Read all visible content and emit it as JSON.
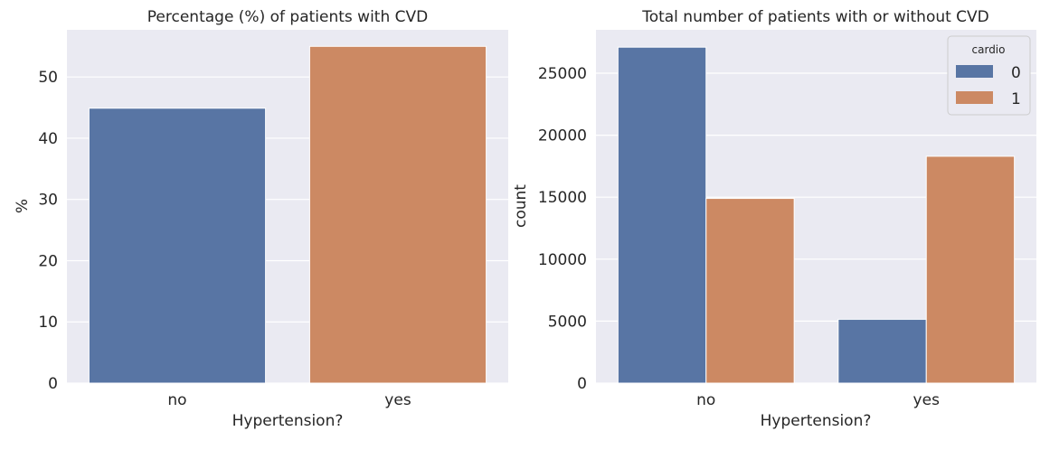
{
  "colors": {
    "background": "#eaeaf2",
    "grid": "#ffffff",
    "series0": "#5875a4",
    "series1": "#cc8963"
  },
  "chart_data": [
    {
      "type": "bar",
      "title": "Percentage (%) of patients with CVD",
      "xlabel": "Hypertension?",
      "ylabel": "%",
      "categories": [
        "no",
        "yes"
      ],
      "values": [
        44.9,
        55.0
      ],
      "yticks": [
        0,
        10,
        20,
        30,
        40,
        50
      ],
      "ylim": [
        0,
        57.7
      ],
      "grid": true
    },
    {
      "type": "bar",
      "title": "Total number of patients with or without CVD",
      "xlabel": "Hypertension?",
      "ylabel": "count",
      "categories": [
        "no",
        "yes"
      ],
      "legend": {
        "title": "cardio",
        "placement": "top-right"
      },
      "series": [
        {
          "name": "0",
          "values": [
            27100,
            5150
          ]
        },
        {
          "name": "1",
          "values": [
            14900,
            18300
          ]
        }
      ],
      "yticks": [
        0,
        5000,
        10000,
        15000,
        20000,
        25000
      ],
      "ylim": [
        0,
        28500
      ],
      "grid": true
    }
  ]
}
